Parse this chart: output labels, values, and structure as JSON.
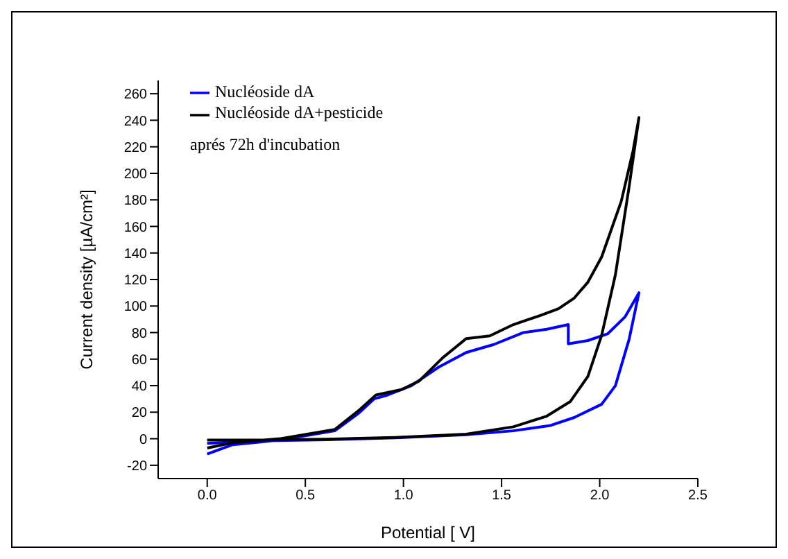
{
  "chart_data": {
    "type": "line",
    "xlabel": "Potential [ V]",
    "ylabel": "Current density [µA/cm²]",
    "annotations": [
      "aprés 72h d'incubation"
    ],
    "xlim": [
      -0.25,
      2.5
    ],
    "xticks": [
      {
        "value": 0,
        "label": "0.0"
      },
      {
        "value": 0.5,
        "label": "0.5"
      },
      {
        "value": 1,
        "label": "1.0"
      },
      {
        "value": 1.5,
        "label": "1.5"
      },
      {
        "value": 2,
        "label": "2.0"
      },
      {
        "value": 2.5,
        "label": "2.5"
      }
    ],
    "ylim": [
      -30,
      270
    ],
    "yticks": [
      -20,
      0,
      20,
      40,
      60,
      80,
      100,
      120,
      140,
      160,
      180,
      200,
      220,
      240,
      260
    ],
    "legend": "top left",
    "grid": false,
    "marker": "none",
    "line_style": "solid",
    "series": [
      {
        "name": "Nucléoside dA",
        "color": "#0000ff",
        "x": [
          0,
          0.13,
          0.37,
          0.65,
          0.77,
          0.85,
          0.92,
          1.04,
          1.18,
          1.32,
          1.46,
          1.61,
          1.73,
          1.84,
          1.84,
          1.94,
          2.04,
          2.13,
          2.2,
          2.15,
          2.08,
          2.01,
          1.87,
          1.75,
          1.56,
          1.32,
          0.96,
          0.61,
          0.25,
          0
        ],
        "values": [
          -11.5,
          -4.5,
          -1,
          6,
          19,
          30,
          33,
          40,
          54,
          65,
          71,
          80,
          82.5,
          86,
          71.5,
          74,
          79,
          92,
          110,
          75,
          40,
          26,
          16,
          10,
          6,
          3,
          0.7,
          -0.7,
          -1.7,
          -3.5
        ]
      },
      {
        "name": "Nucléoside dA+pesticide",
        "color": "#000000",
        "x": [
          0,
          0.13,
          0.37,
          0.65,
          0.77,
          0.86,
          0.99,
          1.08,
          1.2,
          1.32,
          1.44,
          1.56,
          1.7,
          1.79,
          1.87,
          1.94,
          2.01,
          2.11,
          2.17,
          2.2,
          2.15,
          2.08,
          2.01,
          1.94,
          1.85,
          1.73,
          1.56,
          1.32,
          0.96,
          0.61,
          0.25,
          0
        ],
        "values": [
          -7,
          -3,
          0,
          7,
          21,
          33,
          37,
          43.5,
          61,
          75.5,
          77.5,
          86,
          93,
          98,
          106,
          118,
          137,
          179,
          217,
          242,
          190,
          123.5,
          78,
          47,
          28,
          17,
          9,
          3.5,
          1,
          -0.3,
          -1,
          -1
        ]
      }
    ]
  }
}
